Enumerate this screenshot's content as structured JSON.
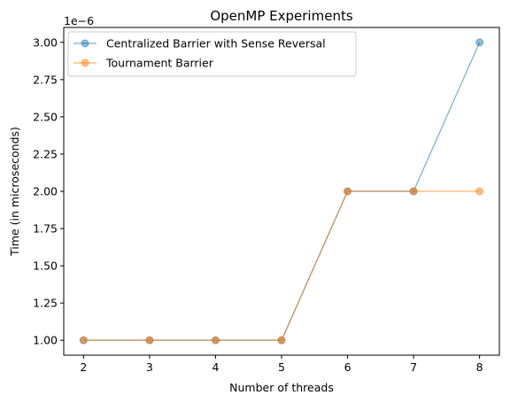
{
  "chart_data": {
    "type": "line",
    "title": "OpenMP Experiments",
    "xlabel": "Number of threads",
    "ylabel": "Time (in microseconds)",
    "y_offset_label": "1e−6",
    "x": [
      2,
      3,
      4,
      5,
      6,
      7,
      8
    ],
    "xticks": [
      "2",
      "3",
      "4",
      "5",
      "6",
      "7",
      "8"
    ],
    "yticks": [
      "1.00",
      "1.25",
      "1.50",
      "1.75",
      "2.00",
      "2.25",
      "2.50",
      "2.75",
      "3.00"
    ],
    "xlim": [
      1.7,
      8.3
    ],
    "ylim": [
      0.9,
      3.1
    ],
    "grid": false,
    "legend_position": "upper-left",
    "series": [
      {
        "name": "Centralized Barrier with Sense Reversal",
        "color": "#1f77b4",
        "values": [
          1.0,
          1.0,
          1.0,
          1.0,
          2.0,
          2.0,
          3.0
        ]
      },
      {
        "name": "Tournament Barrier",
        "color": "#ff7f0e",
        "values": [
          1.0,
          1.0,
          1.0,
          1.0,
          2.0,
          2.0,
          2.0
        ]
      }
    ]
  }
}
